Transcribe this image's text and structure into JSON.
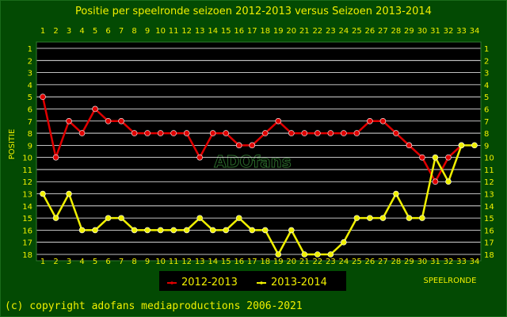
{
  "chart_data": {
    "type": "line",
    "title": "Positie per speelronde seizoen 2012-2013 versus Seizoen 2013-2014",
    "xlabel": "SPEELRONDE",
    "ylabel": "POSITIE",
    "x": [
      1,
      2,
      3,
      4,
      5,
      6,
      7,
      8,
      9,
      10,
      11,
      12,
      13,
      14,
      15,
      16,
      17,
      18,
      19,
      20,
      21,
      22,
      23,
      24,
      25,
      26,
      27,
      28,
      29,
      30,
      31,
      32,
      33,
      34
    ],
    "xlim": [
      1,
      34
    ],
    "ylim": [
      1,
      18
    ],
    "y_inverted": true,
    "y_ticks": [
      1,
      2,
      3,
      4,
      5,
      6,
      7,
      8,
      9,
      10,
      11,
      12,
      13,
      14,
      15,
      16,
      17,
      18
    ],
    "grid": true,
    "legend_placement": "bottom",
    "series": [
      {
        "name": "2012-2013",
        "color": "#e00000",
        "values": [
          5,
          10,
          7,
          8,
          6,
          7,
          7,
          8,
          8,
          8,
          8,
          8,
          10,
          8,
          8,
          9,
          9,
          8,
          7,
          8,
          8,
          8,
          8,
          8,
          8,
          7,
          7,
          8,
          9,
          10,
          12,
          10,
          9,
          null
        ]
      },
      {
        "name": "2013-2014",
        "color": "#f0f000",
        "values": [
          13,
          15,
          13,
          16,
          16,
          15,
          15,
          16,
          16,
          16,
          16,
          16,
          15,
          16,
          16,
          15,
          16,
          16,
          18,
          16,
          18,
          18,
          18,
          17,
          15,
          15,
          15,
          13,
          15,
          15,
          10,
          12,
          9,
          9
        ]
      }
    ]
  },
  "footer": {
    "copyright": "(c) copyright adofans mediaproductions 2006-2021"
  },
  "watermark": {
    "text": "ADOfans"
  },
  "colors": {
    "background": "#034a03",
    "plot_background": "#000000",
    "text": "#f0f000",
    "grid": "#ffffff"
  }
}
